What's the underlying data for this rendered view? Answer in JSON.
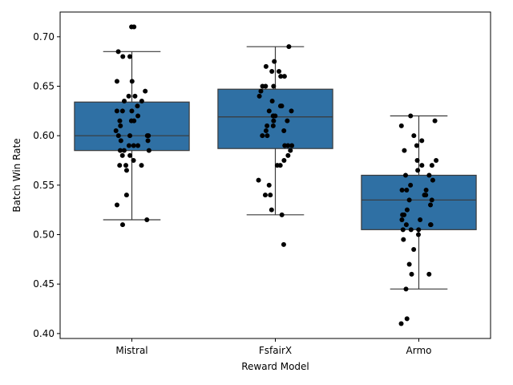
{
  "chart_data": {
    "type": "box",
    "xlabel": "Reward Model",
    "ylabel": "Batch Win Rate",
    "ylim": [
      0.395,
      0.725
    ],
    "yticks": [
      0.4,
      0.45,
      0.5,
      0.55,
      0.6,
      0.65,
      0.7
    ],
    "ytick_labels": [
      "0.40",
      "0.45",
      "0.50",
      "0.55",
      "0.60",
      "0.65",
      "0.70"
    ],
    "categories": [
      "Mistral",
      "FsfairX",
      "Armo"
    ],
    "box_color": "#2f70a4",
    "point_color": "#000000",
    "boxes": [
      {
        "category": "Mistral",
        "whisker_low": 0.515,
        "q1": 0.585,
        "median": 0.6,
        "q3": 0.634,
        "whisker_high": 0.685
      },
      {
        "category": "FsfairX",
        "whisker_low": 0.52,
        "q1": 0.587,
        "median": 0.619,
        "q3": 0.647,
        "whisker_high": 0.69
      },
      {
        "category": "Armo",
        "whisker_low": 0.445,
        "q1": 0.505,
        "median": 0.535,
        "q3": 0.56,
        "whisker_high": 0.62
      }
    ],
    "points": [
      [
        0.71,
        0.71,
        0.685,
        0.68,
        0.68,
        0.655,
        0.655,
        0.645,
        0.64,
        0.64,
        0.635,
        0.635,
        0.63,
        0.625,
        0.625,
        0.625,
        0.62,
        0.615,
        0.615,
        0.615,
        0.61,
        0.605,
        0.6,
        0.6,
        0.6,
        0.6,
        0.595,
        0.595,
        0.59,
        0.59,
        0.59,
        0.585,
        0.585,
        0.585,
        0.58,
        0.58,
        0.575,
        0.57,
        0.57,
        0.57,
        0.565,
        0.54,
        0.53,
        0.515,
        0.51
      ],
      [
        0.69,
        0.675,
        0.67,
        0.665,
        0.665,
        0.66,
        0.66,
        0.65,
        0.65,
        0.65,
        0.645,
        0.64,
        0.635,
        0.63,
        0.63,
        0.625,
        0.625,
        0.62,
        0.62,
        0.62,
        0.615,
        0.615,
        0.61,
        0.61,
        0.605,
        0.605,
        0.6,
        0.6,
        0.59,
        0.59,
        0.59,
        0.585,
        0.58,
        0.575,
        0.57,
        0.57,
        0.555,
        0.55,
        0.54,
        0.54,
        0.525,
        0.52,
        0.49
      ],
      [
        0.62,
        0.615,
        0.61,
        0.6,
        0.595,
        0.59,
        0.585,
        0.575,
        0.575,
        0.57,
        0.57,
        0.565,
        0.56,
        0.56,
        0.555,
        0.55,
        0.545,
        0.545,
        0.545,
        0.54,
        0.54,
        0.535,
        0.535,
        0.53,
        0.525,
        0.52,
        0.52,
        0.515,
        0.515,
        0.51,
        0.51,
        0.51,
        0.505,
        0.505,
        0.505,
        0.5,
        0.495,
        0.485,
        0.47,
        0.46,
        0.46,
        0.445,
        0.415,
        0.41
      ]
    ]
  }
}
